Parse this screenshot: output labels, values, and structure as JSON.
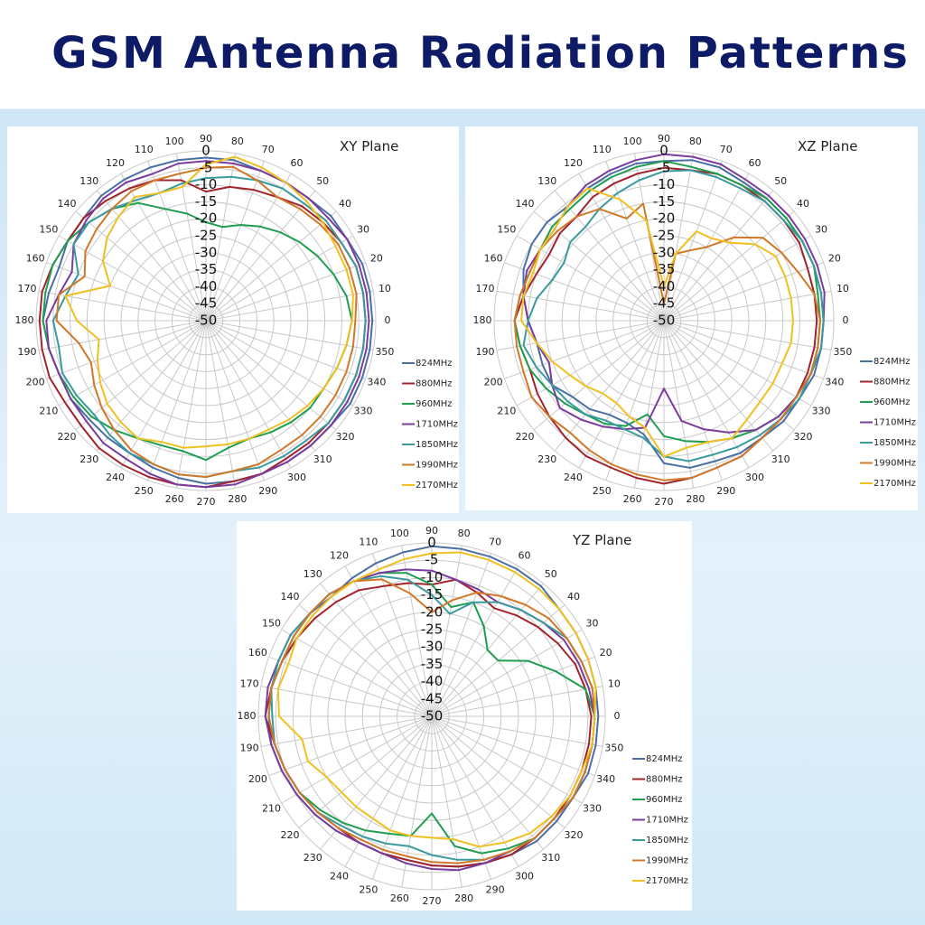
{
  "title": "GSM Antenna  Radiation Patterns",
  "chart_data": [
    {
      "type": "polar",
      "title": "XY Plane",
      "theta": [
        0,
        10,
        20,
        30,
        40,
        50,
        60,
        70,
        80,
        90,
        100,
        110,
        120,
        130,
        140,
        150,
        160,
        170,
        180,
        190,
        200,
        210,
        220,
        230,
        240,
        250,
        260,
        270,
        280,
        290,
        300,
        310,
        320,
        330,
        340,
        350
      ],
      "rlim": [
        -50,
        0
      ],
      "rticks": [
        0,
        -5,
        -10,
        -15,
        -20,
        -25,
        -30,
        -35,
        -40,
        -45,
        -50
      ],
      "series": [
        {
          "name": "824MHz",
          "color": "#4a6fa5",
          "values": [
            -1,
            -1,
            -1,
            -2,
            -2,
            -3,
            -3,
            -3,
            -2,
            -2,
            -2,
            -2,
            -2,
            -2,
            -3,
            -3,
            -4,
            -3,
            -2,
            -3,
            -4,
            -4,
            -5,
            -5,
            -5,
            -4,
            -3,
            -2,
            -2,
            -2,
            -2,
            -2,
            -2,
            -1,
            -1,
            -1
          ]
        },
        {
          "name": "880MHz",
          "color": "#a3232b",
          "values": [
            -3,
            -3,
            -3,
            -4,
            -5,
            -6,
            -8,
            -9,
            -10,
            -12,
            -8,
            -6,
            -5,
            -4,
            -3,
            -3,
            -2,
            -1,
            -1,
            -1,
            -1,
            -2,
            -2,
            -1,
            -1,
            -1,
            -1,
            -1,
            -2,
            -2,
            -3,
            -3,
            -3,
            -3,
            -3,
            -3
          ]
        },
        {
          "name": "960MHz",
          "color": "#1f9e50",
          "values": [
            -7,
            -8,
            -10,
            -12,
            -14,
            -16,
            -18,
            -20,
            -22,
            -21,
            -18,
            -15,
            -10,
            -7,
            -5,
            -3,
            -2,
            -2,
            -2,
            -3,
            -4,
            -5,
            -6,
            -8,
            -10,
            -11,
            -11,
            -9,
            -12,
            -13,
            -12,
            -11,
            -10,
            -10,
            -9,
            -8
          ]
        },
        {
          "name": "1710MHz",
          "color": "#7a3c9e",
          "values": [
            -2,
            -2,
            -2,
            -2,
            -3,
            -3,
            -3,
            -3,
            -3,
            -3,
            -3,
            -4,
            -3,
            -3,
            -4,
            -5,
            -8,
            -6,
            -3,
            -3,
            -4,
            -4,
            -4,
            -3,
            -3,
            -2,
            -1,
            -1,
            -1,
            -2,
            -2,
            -2,
            -2,
            -2,
            -2,
            -2
          ]
        },
        {
          "name": "1850MHz",
          "color": "#3a9aa0",
          "values": [
            -3,
            -3,
            -3,
            -4,
            -4,
            -5,
            -5,
            -6,
            -7,
            -8,
            -9,
            -10,
            -9,
            -7,
            -5,
            -5,
            -10,
            -8,
            -5,
            -6,
            -5,
            -6,
            -7,
            -6,
            -5,
            -5,
            -4,
            -4,
            -5,
            -4,
            -4,
            -4,
            -3,
            -3,
            -3,
            -3
          ]
        },
        {
          "name": "1990MHz",
          "color": "#d07828",
          "values": [
            -6,
            -5,
            -5,
            -5,
            -6,
            -7,
            -8,
            -6,
            -4,
            -5,
            -6,
            -6,
            -6,
            -7,
            -8,
            -9,
            -12,
            -6,
            -6,
            -12,
            -14,
            -12,
            -10,
            -8,
            -6,
            -5,
            -4,
            -4,
            -5,
            -5,
            -6,
            -6,
            -6,
            -6,
            -6,
            -6
          ]
        },
        {
          "name": "2170MHz",
          "color": "#f0c020",
          "values": [
            -7,
            -6,
            -6,
            -6,
            -5,
            -4,
            -3,
            -2,
            -1,
            -4,
            -10,
            -10,
            -8,
            -10,
            -12,
            -15,
            -20,
            -8,
            -12,
            -18,
            -16,
            -14,
            -12,
            -11,
            -10,
            -12,
            -12,
            -13,
            -13,
            -13,
            -13,
            -12,
            -11,
            -10,
            -9,
            -8
          ]
        }
      ]
    },
    {
      "type": "polar",
      "title": "XZ Plane",
      "theta": [
        0,
        10,
        20,
        30,
        40,
        50,
        60,
        70,
        80,
        90,
        100,
        110,
        120,
        130,
        140,
        150,
        160,
        170,
        180,
        190,
        200,
        210,
        220,
        230,
        240,
        250,
        260,
        270,
        280,
        290,
        300,
        310,
        320,
        330,
        340,
        350
      ],
      "rlim": [
        -50,
        0
      ],
      "rticks": [
        0,
        -5,
        -10,
        -15,
        -20,
        -25,
        -30,
        -35,
        -40,
        -45,
        -50
      ],
      "series": [
        {
          "name": "824MHz",
          "color": "#4a6fa5",
          "values": [
            -3,
            -3,
            -3,
            -3,
            -3,
            -3,
            -3,
            -2,
            -2,
            -3,
            -3,
            -4,
            -5,
            -6,
            -5,
            -5,
            -6,
            -8,
            -10,
            -12,
            -12,
            -12,
            -15,
            -16,
            -18,
            -18,
            -16,
            -8,
            -6,
            -6,
            -5,
            -5,
            -4,
            -4,
            -3,
            -3
          ]
        },
        {
          "name": "880MHz",
          "color": "#a3232b",
          "values": [
            -5,
            -5,
            -5,
            -4,
            -4,
            -4,
            -4,
            -4,
            -5,
            -5,
            -6,
            -7,
            -8,
            -10,
            -10,
            -11,
            -10,
            -8,
            -6,
            -7,
            -8,
            -7,
            -6,
            -5,
            -4,
            -4,
            -3,
            -2,
            -3,
            -4,
            -4,
            -5,
            -5,
            -5,
            -5,
            -5
          ]
        },
        {
          "name": "960MHz",
          "color": "#1f9e50",
          "values": [
            -4,
            -4,
            -3,
            -3,
            -3,
            -3,
            -4,
            -4,
            -4,
            -3,
            -4,
            -5,
            -6,
            -7,
            -7,
            -8,
            -8,
            -7,
            -6,
            -7,
            -8,
            -10,
            -12,
            -14,
            -15,
            -17,
            -22,
            -16,
            -14,
            -12,
            -10,
            -8,
            -6,
            -5,
            -4,
            -4
          ]
        },
        {
          "name": "1710MHz",
          "color": "#7a3c9e",
          "values": [
            -3,
            -2,
            -2,
            -2,
            -2,
            -2,
            -2,
            -1,
            -1,
            -1,
            -2,
            -3,
            -4,
            -6,
            -8,
            -8,
            -7,
            -8,
            -10,
            -12,
            -14,
            -12,
            -10,
            -12,
            -14,
            -16,
            -18,
            -30,
            -20,
            -16,
            -12,
            -8,
            -6,
            -5,
            -4,
            -3
          ]
        },
        {
          "name": "1850MHz",
          "color": "#3a9aa0",
          "values": [
            -3,
            -3,
            -3,
            -3,
            -4,
            -4,
            -5,
            -5,
            -5,
            -6,
            -8,
            -10,
            -12,
            -14,
            -14,
            -16,
            -15,
            -12,
            -10,
            -8,
            -10,
            -12,
            -13,
            -14,
            -16,
            -16,
            -15,
            -10,
            -8,
            -8,
            -7,
            -6,
            -5,
            -4,
            -4,
            -3
          ]
        },
        {
          "name": "1990MHz",
          "color": "#d07828",
          "values": [
            -4,
            -5,
            -8,
            -10,
            -12,
            -18,
            -25,
            -28,
            -30,
            -45,
            -15,
            -18,
            -12,
            -10,
            -9,
            -8,
            -8,
            -7,
            -6,
            -6,
            -6,
            -5,
            -6,
            -7,
            -6,
            -5,
            -4,
            -3,
            -3,
            -4,
            -4,
            -5,
            -5,
            -5,
            -4,
            -4
          ]
        },
        {
          "name": "2170MHz",
          "color": "#f0c020",
          "values": [
            -12,
            -12,
            -12,
            -12,
            -15,
            -20,
            -22,
            -22,
            -30,
            -40,
            -20,
            -12,
            -5,
            -6,
            -8,
            -8,
            -9,
            -8,
            -8,
            -12,
            -15,
            -18,
            -20,
            -22,
            -22,
            -20,
            -18,
            -10,
            -12,
            -12,
            -10,
            -12,
            -13,
            -13,
            -13,
            -12
          ]
        }
      ]
    },
    {
      "type": "polar",
      "title": "YZ Plane",
      "theta": [
        0,
        10,
        20,
        30,
        40,
        50,
        60,
        70,
        80,
        90,
        100,
        110,
        120,
        130,
        140,
        150,
        160,
        170,
        180,
        190,
        200,
        210,
        220,
        230,
        240,
        250,
        260,
        270,
        280,
        290,
        300,
        310,
        320,
        330,
        340,
        350
      ],
      "rlim": [
        -50,
        0
      ],
      "rticks": [
        0,
        -5,
        -10,
        -15,
        -20,
        -25,
        -30,
        -35,
        -40,
        -45,
        -50
      ],
      "series": [
        {
          "name": "824MHz",
          "color": "#4a6fa5",
          "values": [
            -2,
            -2,
            -2,
            -2,
            -2,
            -1,
            -1,
            -1,
            -1,
            -1,
            -2,
            -3,
            -4,
            -5,
            -4,
            -4,
            -4,
            -3,
            -3,
            -3,
            -4,
            -5,
            -6,
            -7,
            -8,
            -8,
            -8,
            -7,
            -6,
            -5,
            -4,
            -3,
            -3,
            -3,
            -2,
            -2
          ]
        },
        {
          "name": "880MHz",
          "color": "#a3232b",
          "values": [
            -4,
            -5,
            -6,
            -8,
            -10,
            -12,
            -14,
            -12,
            -10,
            -12,
            -11,
            -10,
            -8,
            -7,
            -6,
            -5,
            -4,
            -3,
            -2,
            -4,
            -5,
            -6,
            -7,
            -8,
            -8,
            -8,
            -8,
            -7,
            -6,
            -5,
            -4,
            -4,
            -4,
            -4,
            -4,
            -4
          ]
        },
        {
          "name": "960MHz",
          "color": "#1f9e50",
          "values": [
            -3,
            -5,
            -12,
            -18,
            -25,
            -25,
            -20,
            -15,
            -18,
            -12,
            -8,
            -6,
            -5,
            -4,
            -4,
            -4,
            -4,
            -3,
            -3,
            -4,
            -5,
            -6,
            -8,
            -10,
            -12,
            -14,
            -15,
            -22,
            -12,
            -8,
            -6,
            -4,
            -4,
            -3,
            -3,
            -3
          ]
        },
        {
          "name": "1710MHz",
          "color": "#7a3c9e",
          "values": [
            -3,
            -4,
            -5,
            -6,
            -8,
            -10,
            -12,
            -11,
            -10,
            -8,
            -7,
            -6,
            -5,
            -4,
            -4,
            -3,
            -3,
            -2,
            -2,
            -3,
            -4,
            -5,
            -6,
            -7,
            -8,
            -8,
            -7,
            -6,
            -5,
            -5,
            -5,
            -4,
            -4,
            -3,
            -3,
            -3
          ]
        },
        {
          "name": "1850MHz",
          "color": "#3a9aa0",
          "values": [
            -3,
            -3,
            -4,
            -5,
            -8,
            -10,
            -12,
            -15,
            -20,
            -15,
            -10,
            -7,
            -5,
            -4,
            -4,
            -3,
            -3,
            -3,
            -4,
            -4,
            -5,
            -6,
            -7,
            -9,
            -10,
            -11,
            -12,
            -10,
            -8,
            -6,
            -5,
            -4,
            -4,
            -3,
            -3,
            -3
          ]
        },
        {
          "name": "1990MHz",
          "color": "#d07828",
          "values": [
            -3,
            -3,
            -4,
            -5,
            -6,
            -8,
            -10,
            -12,
            -16,
            -20,
            -14,
            -8,
            -5,
            -4,
            -4,
            -4,
            -4,
            -3,
            -3,
            -4,
            -5,
            -6,
            -7,
            -8,
            -9,
            -9,
            -9,
            -8,
            -7,
            -6,
            -5,
            -4,
            -4,
            -3,
            -3,
            -3
          ]
        },
        {
          "name": "2170MHz",
          "color": "#f0c020",
          "values": [
            -3,
            -2,
            -2,
            -2,
            -2,
            -2,
            -2,
            -2,
            -2,
            -3,
            -4,
            -5,
            -5,
            -5,
            -5,
            -5,
            -6,
            -5,
            -6,
            -12,
            -12,
            -15,
            -16,
            -16,
            -16,
            -15,
            -15,
            -15,
            -14,
            -10,
            -8,
            -6,
            -5,
            -4,
            -4,
            -3
          ]
        }
      ]
    }
  ]
}
